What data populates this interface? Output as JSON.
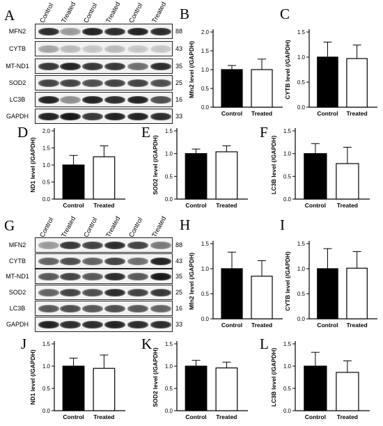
{
  "panel_letters": [
    "A",
    "B",
    "C",
    "D",
    "E",
    "F",
    "G",
    "H",
    "I",
    "J",
    "K",
    "L"
  ],
  "blot_top": {
    "lane_labels": [
      "Control",
      "Treated",
      "Control",
      "Treated",
      "Control",
      "Treated"
    ],
    "rows": [
      {
        "protein": "MFN2",
        "kda": "88",
        "intensity": [
          0.85,
          0.35,
          0.9,
          0.85,
          0.9,
          0.85
        ]
      },
      {
        "protein": "CYTB",
        "kda": "43",
        "intensity": [
          0.3,
          0.2,
          0.15,
          0.2,
          0.15,
          0.15
        ]
      },
      {
        "protein": "MT-ND1",
        "kda": "35",
        "intensity": [
          0.8,
          0.9,
          0.8,
          0.8,
          0.55,
          0.85
        ]
      },
      {
        "protein": "SOD2",
        "kda": "25",
        "intensity": [
          0.75,
          0.75,
          0.7,
          0.75,
          0.75,
          0.7
        ]
      },
      {
        "protein": "LC3B",
        "kda": "16",
        "intensity": [
          0.9,
          0.4,
          0.9,
          0.85,
          0.9,
          0.7
        ]
      },
      {
        "protein": "GAPDH",
        "kda": "33",
        "intensity": [
          0.9,
          0.95,
          0.8,
          0.9,
          0.9,
          0.85
        ]
      }
    ]
  },
  "blot_bottom": {
    "lane_labels": [
      "Control",
      "Treated",
      "Control",
      "Treated",
      "Control",
      "Treated"
    ],
    "rows": [
      {
        "protein": "MFN2",
        "kda": "88",
        "intensity": [
          0.35,
          0.8,
          0.75,
          0.85,
          0.75,
          0.5
        ]
      },
      {
        "protein": "CYTB",
        "kda": "43",
        "intensity": [
          0.6,
          0.7,
          0.6,
          0.75,
          0.55,
          0.9
        ]
      },
      {
        "protein": "MT-ND1",
        "kda": "35",
        "intensity": [
          0.65,
          0.75,
          0.65,
          0.85,
          0.65,
          0.95
        ]
      },
      {
        "protein": "SOD2",
        "kda": "25",
        "intensity": [
          0.6,
          0.75,
          0.7,
          0.85,
          0.75,
          0.8
        ]
      },
      {
        "protein": "LC3B",
        "kda": "16",
        "intensity": [
          0.65,
          0.7,
          0.65,
          0.7,
          0.65,
          0.6
        ]
      },
      {
        "protein": "GAPDH",
        "kda": "33",
        "intensity": [
          0.9,
          0.85,
          0.85,
          0.9,
          0.85,
          0.85
        ]
      }
    ]
  },
  "chart_data": [
    {
      "type": "bar",
      "categories": [
        "Control",
        "Treated"
      ],
      "values": [
        1.0,
        1.0
      ],
      "errors": [
        0.11,
        0.28
      ],
      "ylabel": "Mfn2 level (/GAPDH)",
      "ylim": [
        0,
        2.0
      ],
      "yticks": [
        "0.0",
        "0.5",
        "1.0",
        "1.5",
        "2.0"
      ]
    },
    {
      "type": "bar",
      "categories": [
        "Control",
        "Treated"
      ],
      "values": [
        1.0,
        0.97
      ],
      "errors": [
        0.3,
        0.27
      ],
      "ylabel": "CYTB level (/GAPDH)",
      "ylim": [
        0,
        1.5
      ],
      "yticks": [
        "0.0",
        "0.5",
        "1.0",
        "1.5"
      ]
    },
    {
      "type": "bar",
      "categories": [
        "Control",
        "Treated"
      ],
      "values": [
        1.0,
        1.24
      ],
      "errors": [
        0.28,
        0.32
      ],
      "ylabel": "ND1 level (/GAPDH)",
      "ylim": [
        0,
        2.0
      ],
      "yticks": [
        "0.0",
        "0.5",
        "1.0",
        "1.5",
        "2.0"
      ]
    },
    {
      "type": "bar",
      "categories": [
        "Control",
        "Treated"
      ],
      "values": [
        1.0,
        1.04
      ],
      "errors": [
        0.1,
        0.13
      ],
      "ylabel": "SOD2 level (/GAPDH)",
      "ylim": [
        0,
        1.5
      ],
      "yticks": [
        "0.0",
        "0.5",
        "1.0",
        "1.5"
      ]
    },
    {
      "type": "bar",
      "categories": [
        "Control",
        "Treated"
      ],
      "values": [
        1.0,
        0.78
      ],
      "errors": [
        0.22,
        0.36
      ],
      "ylabel": "LC3B level (/GAPDH)",
      "ylim": [
        0,
        1.5
      ],
      "yticks": [
        "0.0",
        "0.5",
        "1.0",
        "1.5"
      ]
    },
    {
      "type": "bar",
      "categories": [
        "Control",
        "Treated"
      ],
      "values": [
        1.0,
        0.85
      ],
      "errors": [
        0.33,
        0.31
      ],
      "ylabel": "Mfn2 level (/GAPDH)",
      "ylim": [
        0,
        1.5
      ],
      "yticks": [
        "0.0",
        "0.5",
        "1.0",
        "1.5"
      ]
    },
    {
      "type": "bar",
      "categories": [
        "Control",
        "Treated"
      ],
      "values": [
        1.0,
        1.01
      ],
      "errors": [
        0.4,
        0.33
      ],
      "ylabel": "CYTB level (/GAPDH)",
      "ylim": [
        0,
        1.5
      ],
      "yticks": [
        "0.0",
        "0.5",
        "1.0",
        "1.5"
      ]
    },
    {
      "type": "bar",
      "categories": [
        "Control",
        "Treated"
      ],
      "values": [
        1.0,
        0.95
      ],
      "errors": [
        0.18,
        0.3
      ],
      "ylabel": "ND1 level (/GAPDH)",
      "ylim": [
        0,
        1.5
      ],
      "yticks": [
        "0.0",
        "0.5",
        "1.0",
        "1.5"
      ]
    },
    {
      "type": "bar",
      "categories": [
        "Control",
        "Treated"
      ],
      "values": [
        1.0,
        0.96
      ],
      "errors": [
        0.13,
        0.13
      ],
      "ylabel": "SOD2 level (/GAPDH)",
      "ylim": [
        0,
        1.5
      ],
      "yticks": [
        "0.0",
        "0.5",
        "1.0",
        "1.5"
      ]
    },
    {
      "type": "bar",
      "categories": [
        "Control",
        "Treated"
      ],
      "values": [
        1.0,
        0.86
      ],
      "errors": [
        0.31,
        0.26
      ],
      "ylabel": "LC3B level (/GAPDH)",
      "ylim": [
        0,
        1.5
      ],
      "yticks": [
        "0.0",
        "0.5",
        "1.0",
        "1.5"
      ]
    }
  ],
  "colors": {
    "control_bar": "#000000",
    "treated_bar": "#ffffff",
    "axis": "#000000"
  }
}
